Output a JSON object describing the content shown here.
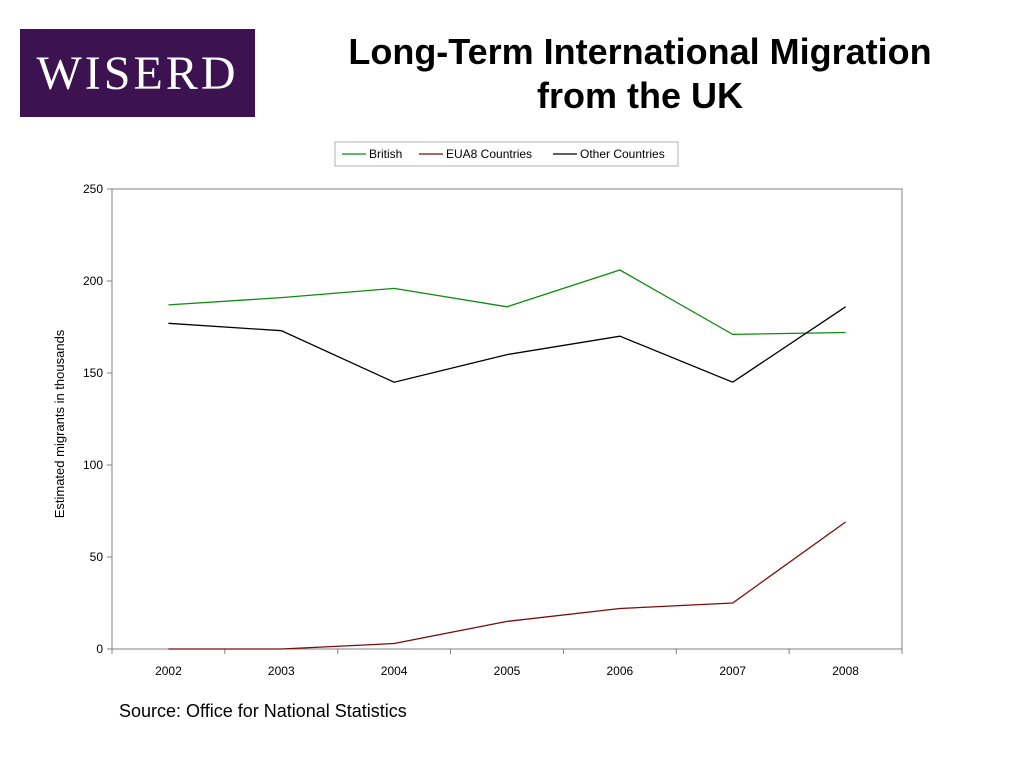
{
  "logo": {
    "text": "WISERD",
    "color": "#3d1250"
  },
  "title": {
    "line1": "Long-Term International Migration",
    "line2": "from the UK"
  },
  "source": "Source: Office for National Statistics",
  "chart_data": {
    "type": "line",
    "ylabel": "Estimated migrants in thousands",
    "xlabel": "",
    "categories": [
      "2002",
      "2003",
      "2004",
      "2005",
      "2006",
      "2007",
      "2008"
    ],
    "ylim": [
      0,
      250
    ],
    "yticks": [
      0,
      50,
      100,
      150,
      200,
      250
    ],
    "grid": false,
    "legend_position": "top",
    "series": [
      {
        "name": "British",
        "color": "#118a11",
        "values": [
          187,
          191,
          196,
          186,
          206,
          171,
          172
        ]
      },
      {
        "name": "EUA8 Countries",
        "color": "#7a0c0c",
        "values": [
          0,
          0,
          3,
          15,
          22,
          25,
          69
        ]
      },
      {
        "name": "Other Countries",
        "color": "#000000",
        "values": [
          177,
          173,
          145,
          160,
          170,
          145,
          186
        ]
      }
    ]
  }
}
